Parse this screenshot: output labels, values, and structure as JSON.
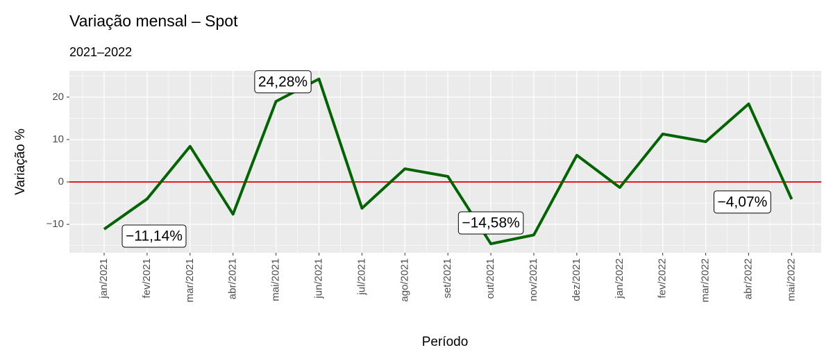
{
  "chart_data": {
    "type": "line",
    "title": "Variação mensal – Spot",
    "subtitle": "2021–2022",
    "x_label": "Período",
    "y_label": "Variação %",
    "categories": [
      "jan/2021",
      "fev/2021",
      "mar/2021",
      "abr/2021",
      "mai/2021",
      "jun/2021",
      "jul/2021",
      "ago/2021",
      "set/2021",
      "out/2021",
      "nov/2021",
      "dez/2021",
      "jan/2022",
      "fev/2022",
      "mar/2022",
      "abr/2022",
      "mai/2022"
    ],
    "series": [
      {
        "name": "Variação",
        "color": "#006400",
        "values": [
          -11.14,
          -4,
          8.4,
          -7.6,
          19,
          24.28,
          -6.2,
          3.1,
          1.3,
          -14.58,
          -12.5,
          6.3,
          -1.3,
          11.3,
          9.5,
          18.4,
          -4.07
        ],
        "value_labels": [
          "−11,14%",
          null,
          null,
          null,
          null,
          "24,28%",
          null,
          null,
          null,
          "−14,58%",
          null,
          null,
          null,
          null,
          null,
          null,
          "−4,07%"
        ]
      }
    ],
    "ylim": [
      -16.7,
      26.2
    ],
    "yticks": [
      {
        "value": -10,
        "label": "−10"
      },
      0,
      10,
      20
    ],
    "reference_line": {
      "value": 0,
      "color": "#e31a1c"
    },
    "grid": true
  }
}
